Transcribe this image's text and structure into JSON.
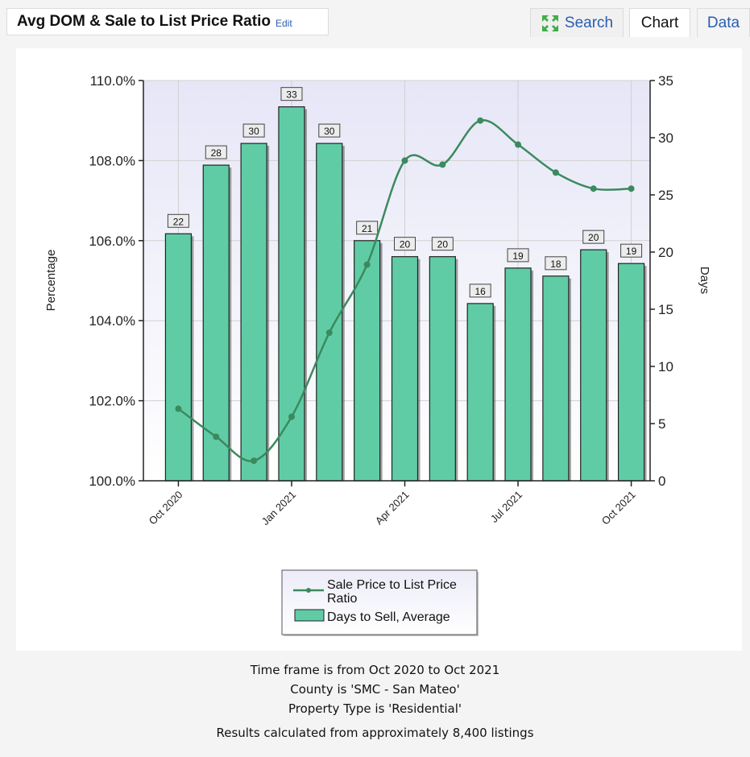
{
  "header": {
    "title": "Avg DOM & Sale to List Price Ratio",
    "edit_label": "Edit"
  },
  "tabs": {
    "search": "Search",
    "chart": "Chart",
    "data": "Data"
  },
  "colors": {
    "bar_fill": "#60cca6",
    "line": "#3a8a5e",
    "plot_bg_top": "#e8e8f8"
  },
  "chart_data": {
    "type": "bar",
    "categories": [
      "Oct 2020",
      "Nov 2020",
      "Dec 2020",
      "Jan 2021",
      "Feb 2021",
      "Mar 2021",
      "Apr 2021",
      "May 2021",
      "Jun 2021",
      "Jul 2021",
      "Aug 2021",
      "Sep 2021",
      "Oct 2021"
    ],
    "x_tick_labels": [
      "Oct 2020",
      "Jan 2021",
      "Apr 2021",
      "Jul 2021",
      "Oct 2021"
    ],
    "x_tick_index": [
      0,
      3,
      6,
      9,
      12
    ],
    "series": [
      {
        "name": "Days to Sell, Average",
        "type": "bar",
        "axis": "right",
        "values": [
          21.6,
          27.6,
          29.5,
          32.7,
          29.5,
          21.0,
          19.6,
          19.6,
          15.5,
          18.6,
          17.9,
          20.2,
          19.0
        ],
        "labels": [
          "22",
          "28",
          "30",
          "33",
          "30",
          "21",
          "20",
          "20",
          "16",
          "19",
          "18",
          "20",
          "19"
        ]
      },
      {
        "name": "Sale Price to List Price Ratio",
        "type": "line",
        "axis": "left",
        "values": [
          101.8,
          101.1,
          100.5,
          101.6,
          103.7,
          105.4,
          108.0,
          107.9,
          109.0,
          108.4,
          107.7,
          107.3,
          107.3
        ]
      }
    ],
    "y_left": {
      "label": "Percentage",
      "min": 100,
      "max": 110,
      "ticks": [
        "100.0%",
        "102.0%",
        "104.0%",
        "106.0%",
        "108.0%",
        "110.0%"
      ]
    },
    "y_right": {
      "label": "Days",
      "min": 0,
      "max": 35,
      "ticks": [
        "0",
        "5",
        "10",
        "15",
        "20",
        "25",
        "30",
        "35"
      ]
    },
    "legend": {
      "line_label_1": "Sale Price to List Price",
      "line_label_2": "Ratio",
      "bar_label": "Days to Sell, Average",
      "placement": "bottom-center"
    }
  },
  "footer": {
    "line1": "Time frame is from Oct 2020 to Oct 2021",
    "line2": "County is 'SMC - San Mateo'",
    "line3": "Property Type is 'Residential'",
    "line4": "Results calculated from approximately 8,400 listings"
  }
}
